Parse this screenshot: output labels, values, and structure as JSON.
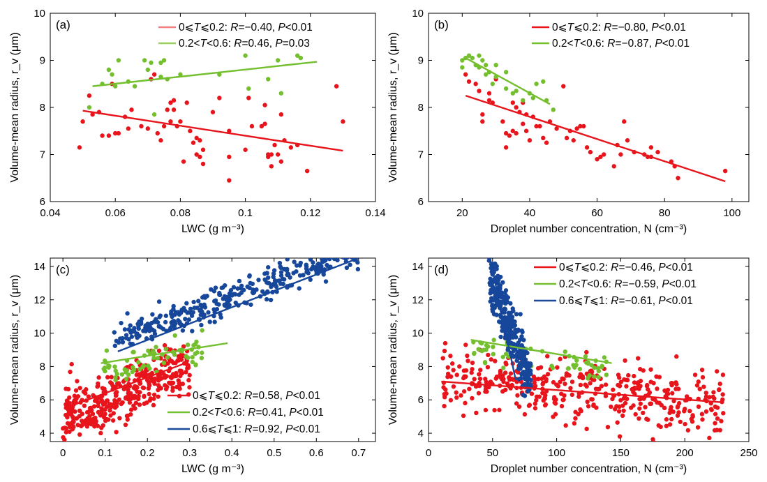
{
  "colors": {
    "red": "#e8141c",
    "green": "#73bf2e",
    "blue": "#17479a",
    "red_light": "#f08080",
    "green_light": "#99d15c"
  },
  "chart_data": [
    {
      "type": "scatter",
      "panel_label": "(a)",
      "xlabel": "LWC (g m⁻³)",
      "ylabel": "Volume-mean radius, r_v (μm)",
      "xlim": [
        0.04,
        0.14
      ],
      "ylim": [
        6,
        10
      ],
      "xticks": [
        "0.04",
        "0.06",
        "0.08",
        "0.1",
        "0.12",
        "0.14"
      ],
      "yticks": [
        "6",
        "7",
        "8",
        "9",
        "10"
      ],
      "legend_style": "light",
      "series": [
        {
          "color": "red",
          "legend": {
            "range": "0⩽T⩽0.2",
            "R": "−0.40",
            "P_op": "<",
            "P": "0.01"
          },
          "fit": [
            [
              0.05,
              7.93
            ],
            [
              0.13,
              7.08
            ]
          ],
          "points": [
            [
              0.049,
              7.15
            ],
            [
              0.05,
              7.7
            ],
            [
              0.052,
              8.25
            ],
            [
              0.053,
              7.85
            ],
            [
              0.055,
              7.9
            ],
            [
              0.056,
              7.4
            ],
            [
              0.058,
              7.4
            ],
            [
              0.059,
              8.5
            ],
            [
              0.06,
              7.45
            ],
            [
              0.061,
              7.45
            ],
            [
              0.063,
              7.8
            ],
            [
              0.064,
              7.55
            ],
            [
              0.065,
              7.95
            ],
            [
              0.068,
              7.6
            ],
            [
              0.07,
              7.55
            ],
            [
              0.071,
              8.6
            ],
            [
              0.072,
              8.7
            ],
            [
              0.073,
              7.45
            ],
            [
              0.074,
              7.3
            ],
            [
              0.075,
              7.6
            ],
            [
              0.076,
              7.95
            ],
            [
              0.077,
              7.7
            ],
            [
              0.077,
              8.1
            ],
            [
              0.078,
              8.15
            ],
            [
              0.078,
              7.95
            ],
            [
              0.079,
              7.6
            ],
            [
              0.08,
              7.7
            ],
            [
              0.081,
              6.85
            ],
            [
              0.082,
              8.1
            ],
            [
              0.083,
              7.5
            ],
            [
              0.084,
              7.25
            ],
            [
              0.085,
              7.0
            ],
            [
              0.085,
              7.35
            ],
            [
              0.086,
              7.3
            ],
            [
              0.086,
              6.95
            ],
            [
              0.087,
              6.8
            ],
            [
              0.087,
              7.1
            ],
            [
              0.09,
              7.9
            ],
            [
              0.092,
              8.2
            ],
            [
              0.095,
              7.5
            ],
            [
              0.095,
              6.95
            ],
            [
              0.095,
              6.45
            ],
            [
              0.1,
              7.1
            ],
            [
              0.101,
              8.2
            ],
            [
              0.102,
              7.6
            ],
            [
              0.105,
              7.6
            ],
            [
              0.106,
              7.65
            ],
            [
              0.106,
              8.05
            ],
            [
              0.107,
              6.95
            ],
            [
              0.107,
              7.0
            ],
            [
              0.108,
              6.75
            ],
            [
              0.108,
              7.0
            ],
            [
              0.109,
              7.2
            ],
            [
              0.11,
              7.0
            ],
            [
              0.111,
              6.85
            ],
            [
              0.111,
              7.85
            ],
            [
              0.112,
              7.3
            ],
            [
              0.114,
              7.15
            ],
            [
              0.116,
              7.2
            ],
            [
              0.119,
              6.65
            ],
            [
              0.128,
              8.45
            ],
            [
              0.13,
              7.7
            ]
          ]
        },
        {
          "color": "green",
          "legend": {
            "range": "0.2<T<0.6",
            "R": "0.46",
            "P_op": "=",
            "P": "0.03"
          },
          "fit": [
            [
              0.053,
              8.45
            ],
            [
              0.122,
              8.97
            ]
          ],
          "points": [
            [
              0.052,
              8.0
            ],
            [
              0.056,
              8.5
            ],
            [
              0.058,
              8.8
            ],
            [
              0.059,
              8.7
            ],
            [
              0.06,
              8.45
            ],
            [
              0.061,
              9.0
            ],
            [
              0.064,
              8.55
            ],
            [
              0.066,
              8.45
            ],
            [
              0.069,
              9.0
            ],
            [
              0.07,
              8.8
            ],
            [
              0.071,
              8.95
            ],
            [
              0.072,
              7.85
            ],
            [
              0.074,
              8.95
            ],
            [
              0.074,
              8.65
            ],
            [
              0.075,
              9.0
            ],
            [
              0.076,
              8.6
            ],
            [
              0.08,
              8.7
            ],
            [
              0.092,
              8.7
            ],
            [
              0.1,
              9.1
            ],
            [
              0.101,
              8.4
            ],
            [
              0.107,
              8.6
            ],
            [
              0.11,
              9.0
            ],
            [
              0.111,
              8.3
            ],
            [
              0.116,
              9.1
            ],
            [
              0.117,
              9.05
            ]
          ]
        }
      ]
    },
    {
      "type": "scatter",
      "panel_label": "(b)",
      "xlabel": "Droplet number concentration, N (cm⁻³)",
      "ylabel": "Volume-mean radius, r_v (μm)",
      "xlim": [
        10,
        105
      ],
      "ylim": [
        6,
        10
      ],
      "xticks": [
        "20",
        "40",
        "60",
        "80",
        "100"
      ],
      "xtick_values": [
        20,
        40,
        60,
        80,
        100
      ],
      "yticks": [
        "6",
        "7",
        "8",
        "9",
        "10"
      ],
      "legend_style": "solid",
      "series": [
        {
          "color": "red",
          "legend": {
            "range": "0⩽T⩽0.2",
            "R": "−0.80",
            "P_op": "<",
            "P": "0.01"
          },
          "fit": [
            [
              21,
              8.25
            ],
            [
              98,
              6.43
            ]
          ],
          "points": [
            [
              21,
              8.7
            ],
            [
              22,
              8.55
            ],
            [
              24,
              8.5
            ],
            [
              25,
              8.35
            ],
            [
              26,
              7.85
            ],
            [
              26,
              7.7
            ],
            [
              28,
              8.3
            ],
            [
              28,
              8.15
            ],
            [
              29,
              8.1
            ],
            [
              30,
              8.6
            ],
            [
              32,
              7.7
            ],
            [
              33,
              7.15
            ],
            [
              33,
              7.45
            ],
            [
              34,
              7.4
            ],
            [
              35,
              7.5
            ],
            [
              35,
              8.1
            ],
            [
              36,
              8.0
            ],
            [
              36,
              7.45
            ],
            [
              37,
              7.9
            ],
            [
              38,
              7.65
            ],
            [
              38,
              8.1
            ],
            [
              39,
              7.85
            ],
            [
              39,
              7.5
            ],
            [
              40,
              7.3
            ],
            [
              41,
              7.8
            ],
            [
              42,
              7.6
            ],
            [
              43,
              7.6
            ],
            [
              44,
              7.35
            ],
            [
              45,
              7.25
            ],
            [
              46,
              7.7
            ],
            [
              48,
              7.55
            ],
            [
              50,
              8.45
            ],
            [
              51,
              7.35
            ],
            [
              52,
              7.5
            ],
            [
              53,
              7.3
            ],
            [
              54,
              7.55
            ],
            [
              55,
              7.6
            ],
            [
              56,
              7.6
            ],
            [
              57,
              7.15
            ],
            [
              58,
              7.05
            ],
            [
              60,
              6.9
            ],
            [
              61,
              6.95
            ],
            [
              62,
              7.0
            ],
            [
              65,
              6.75
            ],
            [
              66,
              7.2
            ],
            [
              67,
              7.0
            ],
            [
              68,
              7.7
            ],
            [
              69,
              7.3
            ],
            [
              71,
              7.05
            ],
            [
              74,
              7.0
            ],
            [
              75,
              6.95
            ],
            [
              76,
              6.95
            ],
            [
              76,
              7.15
            ],
            [
              78,
              7.05
            ],
            [
              82,
              6.85
            ],
            [
              83,
              6.75
            ],
            [
              84,
              6.5
            ],
            [
              98,
              6.65
            ]
          ]
        },
        {
          "color": "green",
          "legend": {
            "range": "0.2<T<0.6",
            "R": "−0.87",
            "P_op": "<",
            "P": "0.01"
          },
          "fit": [
            [
              20.5,
              9.07
            ],
            [
              46,
              8.07
            ]
          ],
          "points": [
            [
              20,
              9.0
            ],
            [
              20,
              8.85
            ],
            [
              21,
              9.05
            ],
            [
              22,
              9.1
            ],
            [
              23,
              9.05
            ],
            [
              24,
              8.9
            ],
            [
              25,
              9.1
            ],
            [
              25,
              8.85
            ],
            [
              26,
              9.0
            ],
            [
              27,
              8.9
            ],
            [
              27,
              8.7
            ],
            [
              28,
              8.75
            ],
            [
              29,
              8.5
            ],
            [
              30,
              8.65
            ],
            [
              30,
              8.9
            ],
            [
              33,
              8.4
            ],
            [
              33,
              8.75
            ],
            [
              35,
              8.3
            ],
            [
              36,
              8.35
            ],
            [
              38,
              8.15
            ],
            [
              40,
              8.3
            ],
            [
              41,
              8.2
            ],
            [
              42,
              8.5
            ],
            [
              44,
              8.55
            ],
            [
              45,
              8.15
            ],
            [
              47,
              7.95
            ]
          ]
        }
      ]
    },
    {
      "type": "scatter",
      "panel_label": "(c)",
      "xlabel": "LWC (g m⁻³)",
      "ylabel": "Volume-mean radius, r_v (μm)",
      "xlim": [
        -0.03,
        0.74
      ],
      "ylim": [
        3.5,
        14.5
      ],
      "xticks": [
        "0",
        "0.1",
        "0.2",
        "0.3",
        "0.4",
        "0.5",
        "0.6",
        "0.7"
      ],
      "xtick_values": [
        0,
        0.1,
        0.2,
        0.3,
        0.4,
        0.5,
        0.6,
        0.7
      ],
      "yticks": [
        "4",
        "6",
        "8",
        "10",
        "12",
        "14"
      ],
      "ytick_values": [
        4,
        6,
        8,
        10,
        12,
        14
      ],
      "legend_style": "solid",
      "series": [
        {
          "color": "red",
          "legend": {
            "range": "0⩽T⩽0.2",
            "R": "0.58",
            "P_op": "<",
            "P": "0.01"
          },
          "fit": [
            [
              0.005,
              5.5
            ],
            [
              0.29,
              8.2
            ]
          ],
          "cloud": {
            "n": 380,
            "x": [
              0.0,
              0.3
            ],
            "slope": 10.5,
            "intercept": 4.9,
            "spread": 0.85,
            "seed": 11
          }
        },
        {
          "color": "green",
          "legend": {
            "range": "0.2<T<0.6",
            "R": "0.41",
            "P_op": "<",
            "P": "0.01"
          },
          "fit": [
            [
              0.09,
              8.2
            ],
            [
              0.39,
              9.4
            ]
          ],
          "cloud": {
            "n": 70,
            "x": [
              0.09,
              0.33
            ],
            "slope": 5.0,
            "intercept": 7.5,
            "spread": 0.45,
            "seed": 23
          }
        },
        {
          "color": "blue",
          "legend": {
            "range": "0.6⩽T⩽1",
            "R": "0.92",
            "P_op": "<",
            "P": "0.01"
          },
          "fit": [
            [
              0.13,
              8.9
            ],
            [
              0.7,
              14.5
            ]
          ],
          "cloud": {
            "n": 340,
            "x": [
              0.12,
              0.7
            ],
            "slope": 9.3,
            "intercept": 8.4,
            "spread": 0.45,
            "seed": 37
          }
        }
      ]
    },
    {
      "type": "scatter",
      "panel_label": "(d)",
      "xlabel": "Droplet number concentration, N (cm⁻³)",
      "ylabel": "Volume-mean radius, r_v (μm)",
      "xlim": [
        0,
        250
      ],
      "ylim": [
        3.5,
        14.5
      ],
      "xticks": [
        "0",
        "50",
        "100",
        "150",
        "200",
        "250"
      ],
      "xtick_values": [
        0,
        50,
        100,
        150,
        200,
        250
      ],
      "yticks": [
        "4",
        "6",
        "8",
        "10",
        "12",
        "14"
      ],
      "ytick_values": [
        4,
        6,
        8,
        10,
        12,
        14
      ],
      "legend_style": "solid",
      "series": [
        {
          "color": "red",
          "legend": {
            "range": "0⩽T⩽0.2",
            "R": "−0.46",
            "P_op": "<",
            "P": "0.01"
          },
          "fit": [
            [
              10,
              7.1
            ],
            [
              230,
              5.85
            ]
          ],
          "cloud": {
            "n": 420,
            "x": [
              10,
              230
            ],
            "slope": -0.0075,
            "intercept": 7.45,
            "spread": 0.95,
            "seed": 53
          }
        },
        {
          "color": "green",
          "legend": {
            "range": "0.2<T<0.6",
            "R": "−0.59",
            "P_op": "<",
            "P": "0.01"
          },
          "fit": [
            [
              33,
              9.6
            ],
            [
              143,
              8.2
            ]
          ],
          "cloud": {
            "n": 60,
            "x": [
              35,
              140
            ],
            "slope": -0.013,
            "intercept": 9.6,
            "spread": 0.4,
            "seed": 67
          }
        },
        {
          "color": "blue",
          "legend": {
            "range": "0.6⩽T⩽1",
            "R": "−0.61",
            "P_op": "<",
            "P": "0.01"
          },
          "fit": [
            [
              48,
              14.5
            ],
            [
              68,
              7.2
            ]
          ],
          "cloud": {
            "n": 300,
            "x": [
              47,
              80
            ],
            "slope": -0.2,
            "intercept": 23.0,
            "spread": 0.8,
            "seed": 79
          }
        }
      ]
    }
  ]
}
